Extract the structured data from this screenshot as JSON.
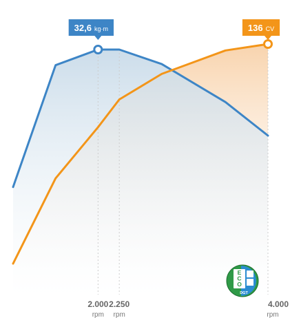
{
  "chart_data": {
    "type": "area",
    "x_unit": "rpm",
    "x": [
      1000,
      1500,
      2000,
      2250,
      2750,
      3500,
      4000
    ],
    "series": [
      {
        "key": "torque",
        "unit": "kg·m",
        "color": "#3d85c6",
        "values": [
          20.3,
          31.2,
          32.6,
          32.6,
          31.3,
          27.9,
          24.9
        ]
      },
      {
        "key": "power",
        "unit": "CV",
        "color": "#f39519",
        "values": [
          33,
          73,
          97,
          110,
          122,
          133,
          136
        ]
      }
    ],
    "labeled_ticks": [
      {
        "value": 2000,
        "label": "2.000",
        "sub": "rpm"
      },
      {
        "value": 2250,
        "label": "2.250",
        "sub": "rpm"
      },
      {
        "value": 4000,
        "label": "4.000",
        "sub": "rpm"
      }
    ],
    "annotations": [
      {
        "series": "torque",
        "x": 2000,
        "y": 32.6,
        "value_label": "32,6",
        "unit_label": "kg·m"
      },
      {
        "series": "power",
        "x": 4000,
        "y": 136,
        "value_label": "136",
        "unit_label": "CV"
      }
    ],
    "badge": {
      "icon": "eco-dgt-label-icon",
      "text": "ECO",
      "subtext": "DGT"
    }
  }
}
